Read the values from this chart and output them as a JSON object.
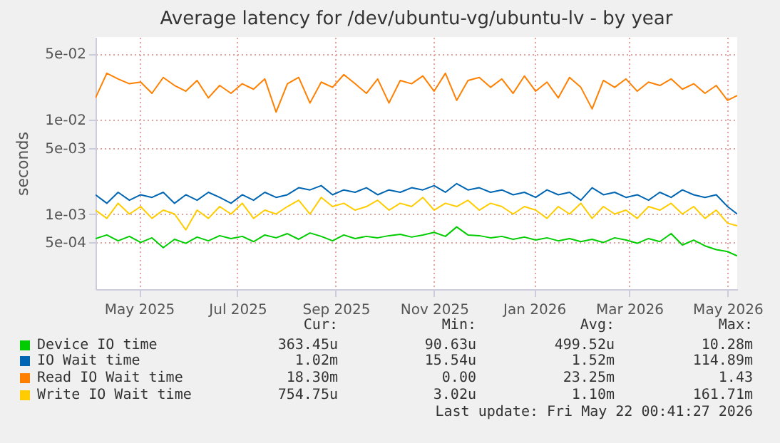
{
  "chart_data": {
    "type": "line",
    "title": "Average latency for /dev/ubuntu-vg/ubuntu-lv - by year",
    "ylabel": "seconds",
    "log": "y",
    "grid": true,
    "legend": "bottom",
    "marker": "none",
    "x": [
      "2025-04-19",
      "2025-04-26",
      "2025-05-03",
      "2025-05-10",
      "2025-05-17",
      "2025-05-24",
      "2025-05-31",
      "2025-06-07",
      "2025-06-14",
      "2025-06-21",
      "2025-06-28",
      "2025-07-05",
      "2025-07-12",
      "2025-07-19",
      "2025-07-26",
      "2025-08-02",
      "2025-08-09",
      "2025-08-16",
      "2025-08-23",
      "2025-08-30",
      "2025-09-06",
      "2025-09-13",
      "2025-09-20",
      "2025-09-27",
      "2025-10-04",
      "2025-10-11",
      "2025-10-18",
      "2025-10-25",
      "2025-11-01",
      "2025-11-08",
      "2025-11-15",
      "2025-11-22",
      "2025-11-29",
      "2025-12-06",
      "2025-12-13",
      "2025-12-20",
      "2025-12-27",
      "2026-01-03",
      "2026-01-10",
      "2026-01-17",
      "2026-01-24",
      "2026-01-31",
      "2026-02-07",
      "2026-02-14",
      "2026-02-21",
      "2026-02-28",
      "2026-03-07",
      "2026-03-14",
      "2026-03-21",
      "2026-03-28",
      "2026-04-04",
      "2026-04-11",
      "2026-04-18",
      "2026-04-25",
      "2026-05-02",
      "2026-05-09",
      "2026-05-16",
      "2026-05-22"
    ],
    "xlim": [
      "2025-04-19",
      "2026-05-22"
    ],
    "xticks": [
      {
        "value": "2025-05-16",
        "label": "May 2025"
      },
      {
        "value": "2025-07-16",
        "label": "Jul 2025"
      },
      {
        "value": "2025-09-15",
        "label": "Sep 2025"
      },
      {
        "value": "2025-11-15",
        "label": "Nov 2025"
      },
      {
        "value": "2026-01-16",
        "label": "Jan 2026"
      },
      {
        "value": "2026-03-16",
        "label": "Mar 2026"
      },
      {
        "value": "2026-05-16",
        "label": "May 2026"
      }
    ],
    "ylim": [
      0.00016,
      0.075
    ],
    "yticks": [
      {
        "value": 0.0005,
        "label": "5e-04"
      },
      {
        "value": 0.001,
        "label": "1e-03"
      },
      {
        "value": 0.005,
        "label": "5e-03"
      },
      {
        "value": 0.01,
        "label": "1e-02"
      },
      {
        "value": 0.05,
        "label": "5e-02"
      }
    ],
    "series": [
      {
        "name": "Device IO time",
        "color": "#00cc00",
        "values": [
          0.00055,
          0.0006,
          0.00052,
          0.00058,
          0.0005,
          0.00056,
          0.00044,
          0.00054,
          0.00049,
          0.00057,
          0.00052,
          0.00059,
          0.00055,
          0.00058,
          0.00051,
          0.0006,
          0.00056,
          0.00062,
          0.00054,
          0.00063,
          0.00058,
          0.00052,
          0.0006,
          0.00055,
          0.00058,
          0.00056,
          0.00059,
          0.00061,
          0.00057,
          0.0006,
          0.00064,
          0.00058,
          0.00073,
          0.0006,
          0.00059,
          0.00056,
          0.00058,
          0.00054,
          0.00057,
          0.00053,
          0.00056,
          0.00052,
          0.00055,
          0.00051,
          0.00054,
          0.0005,
          0.00056,
          0.00053,
          0.00049,
          0.00055,
          0.00051,
          0.00062,
          0.00047,
          0.00053,
          0.00046,
          0.00042,
          0.0004,
          0.00036
        ]
      },
      {
        "name": "IO Wait time",
        "color": "#0066b3",
        "values": [
          0.0016,
          0.0013,
          0.0017,
          0.0014,
          0.0016,
          0.0015,
          0.0017,
          0.0013,
          0.0016,
          0.0014,
          0.0017,
          0.0015,
          0.0013,
          0.0016,
          0.0014,
          0.0017,
          0.0015,
          0.0016,
          0.0019,
          0.0018,
          0.002,
          0.0016,
          0.0018,
          0.0017,
          0.0019,
          0.0016,
          0.0018,
          0.0017,
          0.0019,
          0.0018,
          0.002,
          0.0017,
          0.0021,
          0.0018,
          0.0019,
          0.0017,
          0.0018,
          0.0016,
          0.0017,
          0.0015,
          0.0018,
          0.0016,
          0.0017,
          0.0014,
          0.0019,
          0.0016,
          0.0017,
          0.0015,
          0.0016,
          0.0014,
          0.0017,
          0.0015,
          0.0018,
          0.0016,
          0.0015,
          0.0016,
          0.0012,
          0.001
        ]
      },
      {
        "name": "Read IO Wait time",
        "color": "#ff8000",
        "values": [
          0.017,
          0.031,
          0.027,
          0.024,
          0.025,
          0.019,
          0.028,
          0.023,
          0.02,
          0.026,
          0.017,
          0.023,
          0.019,
          0.024,
          0.021,
          0.027,
          0.012,
          0.024,
          0.028,
          0.015,
          0.025,
          0.022,
          0.03,
          0.024,
          0.019,
          0.027,
          0.015,
          0.026,
          0.024,
          0.029,
          0.02,
          0.031,
          0.016,
          0.026,
          0.028,
          0.022,
          0.027,
          0.019,
          0.029,
          0.02,
          0.025,
          0.017,
          0.028,
          0.022,
          0.013,
          0.026,
          0.022,
          0.027,
          0.02,
          0.025,
          0.023,
          0.027,
          0.021,
          0.024,
          0.019,
          0.023,
          0.016,
          0.018
        ]
      },
      {
        "name": "Write IO Wait time",
        "color": "#ffcc00",
        "values": [
          0.0011,
          0.0009,
          0.0013,
          0.001,
          0.0012,
          0.0009,
          0.0011,
          0.001,
          0.00068,
          0.0011,
          0.0009,
          0.0012,
          0.001,
          0.0013,
          0.0009,
          0.0011,
          0.001,
          0.0012,
          0.0014,
          0.001,
          0.0015,
          0.0012,
          0.0013,
          0.0011,
          0.0012,
          0.0014,
          0.0011,
          0.0013,
          0.0012,
          0.0015,
          0.0011,
          0.0013,
          0.0012,
          0.0014,
          0.0011,
          0.0013,
          0.0012,
          0.001,
          0.0012,
          0.0011,
          0.0009,
          0.0012,
          0.001,
          0.0013,
          0.0009,
          0.0012,
          0.001,
          0.0011,
          0.0009,
          0.0012,
          0.0011,
          0.0013,
          0.001,
          0.0012,
          0.0009,
          0.0011,
          0.0008,
          0.00075
        ]
      }
    ],
    "annotations": [
      "Cur:",
      "Min:",
      "Avg:",
      "Max:",
      "363.45u",
      "90.63u",
      "499.52u",
      "10.28m",
      "1.02m",
      "15.54u",
      "1.52m",
      "114.89m",
      "18.30m",
      "0.00",
      "23.25m",
      "1.43",
      "754.75u",
      "3.02u",
      "1.10m",
      "161.71m",
      "Last update: Fri May 22 00:41:27 2026"
    ]
  }
}
